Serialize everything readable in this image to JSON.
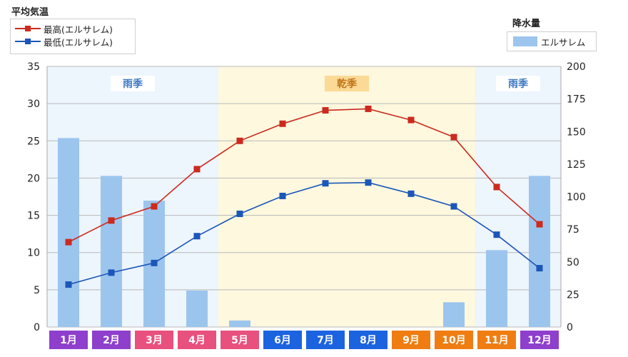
{
  "labels": {
    "temp_title": "平均気温",
    "rain_title": "降水量"
  },
  "legend": {
    "max": "最高(エルサレム)",
    "min": "最低(エルサレム)",
    "rain": "エルサレム"
  },
  "chart_data": {
    "type": "bar",
    "categories": [
      "1月",
      "2月",
      "3月",
      "4月",
      "5月",
      "6月",
      "7月",
      "8月",
      "9月",
      "10月",
      "11月",
      "12月"
    ],
    "series": [
      {
        "name": "最高(エルサレム)",
        "type": "line",
        "axis": "left",
        "color": "#cc2a1e",
        "values": [
          11.4,
          14.3,
          16.2,
          21.2,
          25.0,
          27.3,
          29.1,
          29.3,
          27.8,
          25.5,
          18.8,
          13.8
        ]
      },
      {
        "name": "最低(エルサレム)",
        "type": "line",
        "axis": "left",
        "color": "#1c56b8",
        "values": [
          5.7,
          7.3,
          8.6,
          12.2,
          15.2,
          17.6,
          19.3,
          19.4,
          17.9,
          16.2,
          12.4,
          7.9
        ]
      },
      {
        "name": "エルサレム",
        "type": "bar",
        "axis": "right",
        "color": "#9cc5ee",
        "values": [
          145,
          116,
          97,
          28,
          5,
          0,
          0,
          0,
          0,
          19,
          59,
          116
        ]
      }
    ],
    "y_left": {
      "min": 0,
      "max": 35,
      "ticks": [
        0,
        5,
        10,
        15,
        20,
        25,
        30,
        35
      ]
    },
    "y_right": {
      "min": 0,
      "max": 200,
      "ticks": [
        0,
        25,
        50,
        75,
        100,
        125,
        150,
        175,
        200
      ]
    },
    "month_colors": [
      "#8e3fcc",
      "#8e3fcc",
      "#e8507e",
      "#e8507e",
      "#e8507e",
      "#1c63e0",
      "#1c63e0",
      "#1c63e0",
      "#ef7d12",
      "#ef7d12",
      "#ef7d12",
      "#8e3fcc"
    ],
    "seasons": [
      {
        "label": "雨季",
        "start": 0,
        "end": 4,
        "kind": "wet"
      },
      {
        "label": "乾季",
        "start": 4,
        "end": 10,
        "kind": "dry"
      },
      {
        "label": "雨季",
        "start": 10,
        "end": 12,
        "kind": "wet"
      }
    ],
    "season_colors": {
      "wet": "#edf5fd",
      "dry": "#fdf8de",
      "wet_label": "#3e79c3",
      "dry_label": "#c27419",
      "dry_tag_bg": "#fbd996"
    },
    "grid": true
  }
}
